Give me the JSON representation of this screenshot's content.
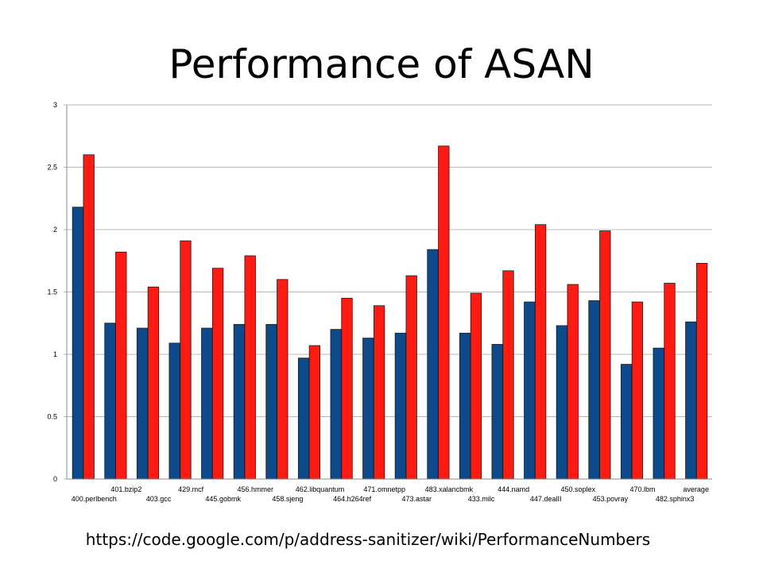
{
  "slide": {
    "title": "Performance of ASAN",
    "source_url": "https://code.google.com/p/address-sanitizer/wiki/PerformanceNumbers"
  },
  "colors": {
    "series_a": "#0d4a8c",
    "series_b": "#ff1a12",
    "grid": "#b8b8b8",
    "axis": "#8a8a8a"
  },
  "chart_data": {
    "type": "bar",
    "title": "",
    "xlabel": "",
    "ylabel": "",
    "ylim": [
      0,
      3
    ],
    "yticks": [
      "0",
      "0.5",
      "1",
      "1.5",
      "2",
      "2.5",
      "3"
    ],
    "grid": true,
    "legend": "none",
    "categories": [
      "400.perlbench",
      "401.bzip2",
      "403.gcc",
      "429.mcf",
      "445.gobmk",
      "456.hmmer",
      "458.sjeng",
      "462.libquantum",
      "464.h264ref",
      "471.omnetpp",
      "473.astar",
      "483.xalancbmk",
      "433.milc",
      "444.namd",
      "447.dealII",
      "450.soplex",
      "453.povray",
      "470.lbm",
      "482.sphinx3",
      "average"
    ],
    "series": [
      {
        "values": [
          2.18,
          1.25,
          1.21,
          1.09,
          1.21,
          1.24,
          1.24,
          0.97,
          1.2,
          1.13,
          1.17,
          1.84,
          1.17,
          1.08,
          1.42,
          1.23,
          1.43,
          0.92,
          1.05,
          1.26
        ]
      },
      {
        "values": [
          2.6,
          1.82,
          1.54,
          1.91,
          1.69,
          1.79,
          1.6,
          1.07,
          1.45,
          1.39,
          1.63,
          2.67,
          1.49,
          1.67,
          2.04,
          1.56,
          1.99,
          1.42,
          1.57,
          1.73
        ]
      }
    ]
  }
}
